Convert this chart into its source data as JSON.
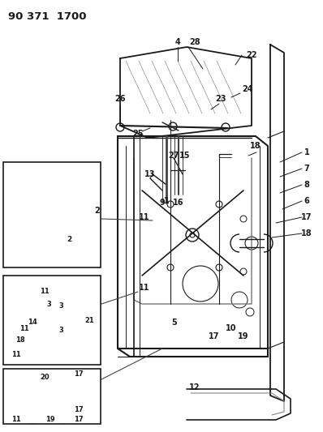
{
  "title": "90 371  1700",
  "bg_color": "#ffffff",
  "line_color": "#1a1a1a",
  "title_fontsize": 9.5,
  "label_fontsize": 7.0,
  "figsize": [
    3.98,
    5.33
  ],
  "dpi": 100,
  "gray": "#777777",
  "darkgray": "#444444",
  "lightgray": "#aaaaaa"
}
